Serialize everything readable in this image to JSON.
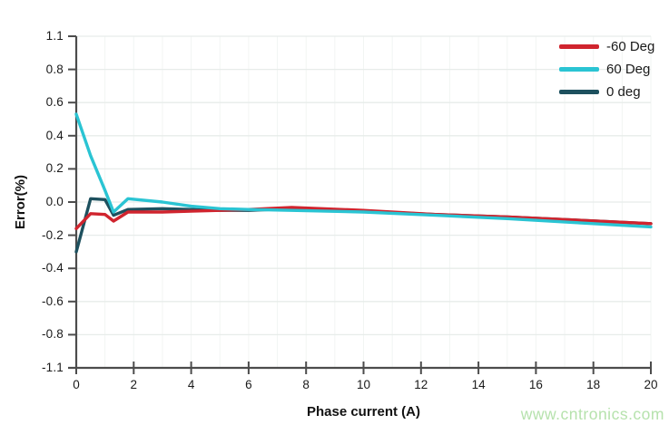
{
  "watermark": {
    "text": "www.cntronics.com",
    "color": "#b6e2ad"
  },
  "colors": {
    "background": "#ffffff",
    "axis": "#4c4c4c",
    "grid_major": "#e7ecea",
    "grid_minor": "#f2f5f3",
    "tick_text": "#1a1a1a"
  },
  "chart_data": {
    "type": "line",
    "title": "",
    "xlabel": "Phase current (A)",
    "ylabel": "Error(%)",
    "grid": true,
    "legend_position": "top-right",
    "x_axis": {
      "min": 0,
      "max": 20,
      "tick_step": 2,
      "ticks": [
        0,
        2,
        4,
        6,
        8,
        10,
        12,
        14,
        16,
        18,
        20
      ]
    },
    "y_axis": {
      "tick_labels": [
        "1.1",
        "0.8",
        "0.6",
        "0.4",
        "0.2",
        "0.0",
        "-0.2",
        "-0.4",
        "-0.6",
        "-0.8",
        "-1.1"
      ],
      "note": "ticks evenly spaced; 0.2 per step between 0.8 and -0.8, end ticks at 1.1/-1.1"
    },
    "x": [
      0,
      0.5,
      1,
      1.3,
      1.8,
      3,
      4,
      5,
      6,
      7.5,
      10,
      12.5,
      15,
      17.5,
      20
    ],
    "series": [
      {
        "name": "-60 Deg",
        "color": "#d0242e",
        "values": [
          -0.16,
          -0.07,
          -0.075,
          -0.115,
          -0.06,
          -0.06,
          -0.055,
          -0.05,
          -0.045,
          -0.032,
          -0.05,
          -0.075,
          -0.09,
          -0.11,
          -0.13
        ]
      },
      {
        "name": "60 Deg",
        "color": "#2ac4d3",
        "values": [
          0.53,
          0.28,
          0.07,
          -0.06,
          0.02,
          0.0,
          -0.025,
          -0.04,
          -0.045,
          -0.05,
          -0.06,
          -0.08,
          -0.1,
          -0.125,
          -0.15
        ]
      },
      {
        "name": "0 deg",
        "color": "#1d505e",
        "values": [
          -0.3,
          0.02,
          0.015,
          -0.08,
          -0.045,
          -0.04,
          -0.045,
          -0.05,
          -0.05,
          -0.04,
          -0.055,
          -0.075,
          -0.09,
          -0.11,
          -0.13
        ]
      }
    ],
    "draw_order": [
      2,
      0,
      1
    ]
  }
}
